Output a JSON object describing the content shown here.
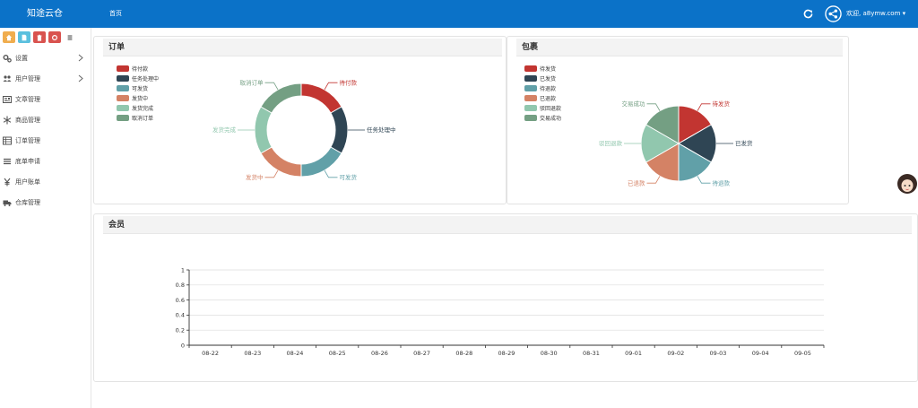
{
  "header": {
    "brand": "知途云仓",
    "nav_home": "首页",
    "welcome": "欢迎, a8ymw.com",
    "bar_color": "#0b72c8"
  },
  "shortcuts": [
    {
      "name": "home-icon",
      "color": "#f0ad4e"
    },
    {
      "name": "file-icon",
      "color": "#5bc0de"
    },
    {
      "name": "trash-icon",
      "color": "#d9534f"
    },
    {
      "name": "refresh-icon",
      "color": "#d9534f"
    },
    {
      "name": "list-icon",
      "color": "#ffffff"
    }
  ],
  "sidebar": {
    "items": [
      {
        "label": "设置",
        "icon": "gears-icon",
        "has_children": true
      },
      {
        "label": "用户管理",
        "icon": "users-icon",
        "has_children": true
      },
      {
        "label": "文章管理",
        "icon": "newspaper-icon",
        "has_children": false
      },
      {
        "label": "商品管理",
        "icon": "snowflake-icon",
        "has_children": false
      },
      {
        "label": "订单管理",
        "icon": "table-icon",
        "has_children": false
      },
      {
        "label": "底单申请",
        "icon": "list-icon",
        "has_children": false
      },
      {
        "label": "用户账单",
        "icon": "yen-icon",
        "has_children": false
      },
      {
        "label": "仓库管理",
        "icon": "truck-icon",
        "has_children": false
      }
    ]
  },
  "orders_panel": {
    "title": "订单"
  },
  "packages_panel": {
    "title": "包裹"
  },
  "members_panel": {
    "title": "会员"
  },
  "chart_data": [
    {
      "type": "pie",
      "variant": "donut",
      "series": [
        {
          "name": "待付款",
          "value": 1,
          "color": "#c23531"
        },
        {
          "name": "任务处理中",
          "value": 1,
          "color": "#2f4554"
        },
        {
          "name": "可发货",
          "value": 1,
          "color": "#61a0a8"
        },
        {
          "name": "发货中",
          "value": 1,
          "color": "#d48265"
        },
        {
          "name": "发货完成",
          "value": 1,
          "color": "#91c7ae"
        },
        {
          "name": "取消订单",
          "value": 1,
          "color": "#749f83"
        }
      ],
      "legend": "top-left"
    },
    {
      "type": "pie",
      "series": [
        {
          "name": "待发货",
          "value": 1,
          "color": "#c23531"
        },
        {
          "name": "已发货",
          "value": 1,
          "color": "#2f4554"
        },
        {
          "name": "待退款",
          "value": 1,
          "color": "#61a0a8"
        },
        {
          "name": "已退款",
          "value": 1,
          "color": "#d48265"
        },
        {
          "name": "驳回退款",
          "value": 1,
          "color": "#91c7ae"
        },
        {
          "name": "交易成功",
          "value": 1,
          "color": "#749f83"
        }
      ],
      "legend": "top-left"
    },
    {
      "type": "line",
      "categories": [
        "08-22",
        "08-23",
        "08-24",
        "08-25",
        "08-26",
        "08-27",
        "08-28",
        "08-29",
        "08-30",
        "08-31",
        "09-01",
        "09-02",
        "09-03",
        "09-04",
        "09-05"
      ],
      "series": [],
      "ylim": [
        0,
        1
      ],
      "yticks": [
        "0",
        "0.2",
        "0.4",
        "0.6",
        "0.8",
        "1"
      ],
      "grid": true
    }
  ]
}
